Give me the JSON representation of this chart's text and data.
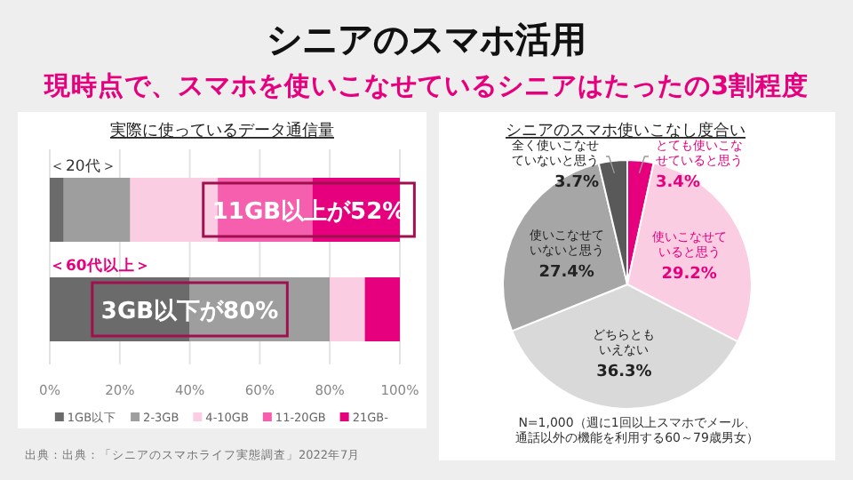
{
  "chart_data": [
    {
      "type": "bar",
      "orientation": "horizontal",
      "stacked": true,
      "title": "シニアのスマホ活用",
      "subtitle": "現時点で、スマホを使いこなせているシニアはたったの3割程度",
      "categories": [
        "＜20代＞",
        "＜60代以上＞"
      ],
      "series": [
        {
          "name": "1GB以下",
          "color": "#6b6b6b",
          "values": [
            4,
            40
          ]
        },
        {
          "name": "2-3GB",
          "color": "#9e9e9e",
          "values": [
            19,
            40
          ]
        },
        {
          "name": "4-10GB",
          "color": "#fbcde3",
          "values": [
            25,
            10
          ]
        },
        {
          "name": "11-20GB",
          "color": "#f55fae",
          "values": [
            27,
            0
          ]
        },
        {
          "name": "21GB-",
          "color": "#e6007e",
          "values": [
            25,
            10
          ]
        }
      ],
      "xlim": [
        0,
        100
      ],
      "xticks": [
        {
          "value": 0,
          "label": "0%"
        },
        {
          "value": 20,
          "label": "20%"
        },
        {
          "value": 40,
          "label": "40%"
        },
        {
          "value": 60,
          "label": "60%"
        },
        {
          "value": 80,
          "label": "80%"
        },
        {
          "value": 100,
          "label": "100%"
        }
      ],
      "grid": "x",
      "legend": "bottom",
      "annotations": [
        "実際に使っているデータ通信量",
        {
          "text": "11GB以上が52%",
          "x": 74,
          "y": "＜20代＞"
        },
        {
          "text": "3GB以下が80%",
          "x": 40,
          "y": "＜60代以上＞"
        },
        "出典：出典：「シニアのスマホライフ実態調査」2022年7月"
      ]
    },
    {
      "type": "pie",
      "title": "シニアのスマホ使いこなし度合い",
      "categories": [
        "とても使いこなせていると思う",
        "使いこなせていると思う",
        "どちらともいえない",
        "使いこなせていないと思う",
        "全く使いこなせていないと思う"
      ],
      "values": [
        3.4,
        29.2,
        36.3,
        27.4,
        3.7
      ],
      "value_labels": [
        "3.4%",
        "29.2%",
        "36.3%",
        "27.4%",
        "3.7%"
      ],
      "colors": [
        "#e6007e",
        "#fbcde3",
        "#d9d9d9",
        "#a6a6a6",
        "#595959"
      ],
      "annotations": [
        "N=1,000（週に1回以上スマホでメール、通話以外の機能を利用する60～79歳男女）"
      ]
    }
  ]
}
